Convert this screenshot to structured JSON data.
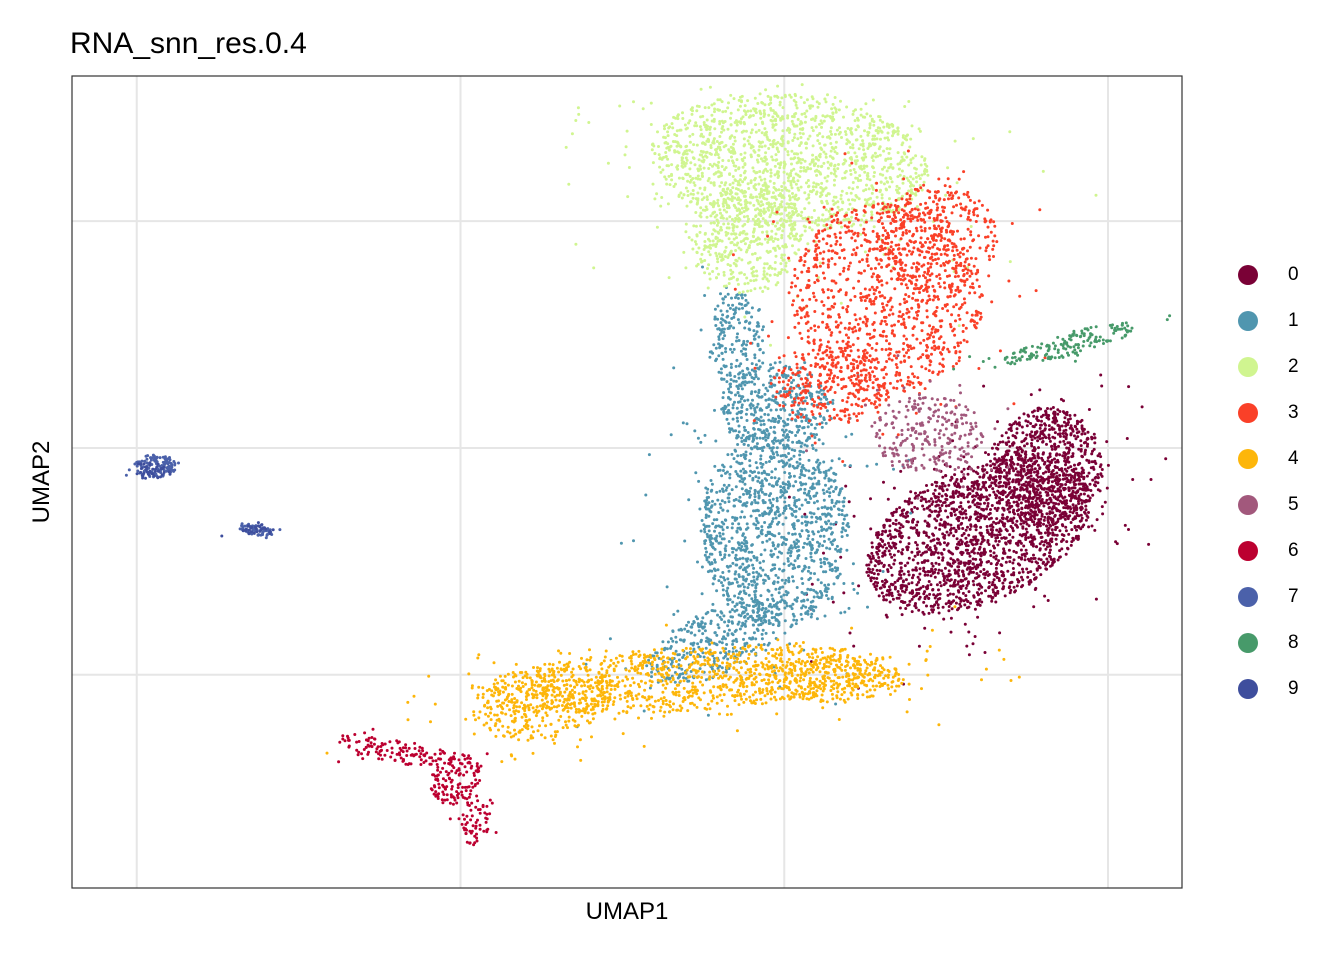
{
  "chart_data": {
    "type": "scatter",
    "title": "RNA_snn_res.0.4",
    "xlabel": "UMAP1",
    "ylabel": "UMAP2",
    "xlim": [
      -12.2,
      11.8
    ],
    "ylim": [
      -9.7,
      8.2
    ],
    "x_ticks": [
      -10.8,
      -3.8,
      3.2,
      10.2
    ],
    "y_ticks": [
      -5,
      0,
      5
    ],
    "tick_labels_shown": false,
    "grid": true,
    "legend_position": "right",
    "point_size": "small",
    "clusters": [
      {
        "name": "0",
        "color": "#7A0136"
      },
      {
        "name": "1",
        "color": "#5096AF"
      },
      {
        "name": "2",
        "color": "#D0F590"
      },
      {
        "name": "3",
        "color": "#FA4028"
      },
      {
        "name": "4",
        "color": "#FDB60A"
      },
      {
        "name": "5",
        "color": "#A2587C"
      },
      {
        "name": "6",
        "color": "#BC0030"
      },
      {
        "name": "7",
        "color": "#4B61AA"
      },
      {
        "name": "8",
        "color": "#479A6A"
      },
      {
        "name": "9",
        "color": "#3E4E9D"
      }
    ],
    "regions": [
      {
        "cluster": "0",
        "n": 2600,
        "ellipses": [
          [
            7.4,
            -1.9,
            2.6,
            1.5,
            25
          ],
          [
            8.9,
            -0.4,
            1.2,
            1.3,
            0
          ]
        ]
      },
      {
        "cluster": "1",
        "n": 2200,
        "ellipses": [
          [
            3.0,
            -1.8,
            1.6,
            2.2,
            0
          ],
          [
            1.7,
            -4.3,
            1.6,
            0.7,
            25
          ],
          [
            3.0,
            0.9,
            1.2,
            1.0,
            0
          ],
          [
            2.2,
            2.4,
            0.6,
            1.1,
            0
          ]
        ]
      },
      {
        "cluster": "2",
        "n": 2000,
        "ellipses": [
          [
            3.3,
            6.3,
            3.0,
            1.5,
            -5
          ],
          [
            2.4,
            4.6,
            1.2,
            1.2,
            0
          ]
        ]
      },
      {
        "cluster": "3",
        "n": 1600,
        "ellipses": [
          [
            5.4,
            3.3,
            2.1,
            2.1,
            0
          ],
          [
            4.2,
            1.4,
            1.3,
            0.9,
            0
          ],
          [
            6.5,
            4.6,
            1.3,
            1.2,
            0
          ]
        ]
      },
      {
        "cluster": "4",
        "n": 1600,
        "ellipses": [
          [
            1.0,
            -5.1,
            4.5,
            0.7,
            4
          ],
          [
            -2.0,
            -5.6,
            1.6,
            0.8,
            12
          ],
          [
            4.0,
            -5.1,
            1.8,
            0.5,
            0
          ]
        ]
      },
      {
        "cluster": "5",
        "n": 260,
        "ellipses": [
          [
            6.3,
            0.3,
            1.2,
            0.9,
            0
          ]
        ]
      },
      {
        "cluster": "6",
        "n": 320,
        "ellipses": [
          [
            -5.1,
            -6.7,
            1.4,
            0.25,
            -10
          ],
          [
            -3.5,
            -8.2,
            0.35,
            0.55,
            0
          ],
          [
            -3.9,
            -7.3,
            0.5,
            0.6,
            -40
          ]
        ]
      },
      {
        "cluster": "7",
        "n": 180,
        "ellipses": [
          [
            -10.4,
            -0.4,
            0.45,
            0.25,
            0
          ],
          [
            -8.2,
            -1.8,
            0.4,
            0.12,
            -10
          ]
        ]
      },
      {
        "cluster": "8",
        "n": 170,
        "ellipses": [
          [
            9.4,
            2.3,
            1.5,
            0.25,
            15
          ]
        ]
      },
      {
        "cluster": "9",
        "n": 70,
        "ellipses": [
          [
            -10.5,
            -0.5,
            0.35,
            0.2,
            0
          ],
          [
            -8.2,
            -1.8,
            0.35,
            0.12,
            0
          ]
        ]
      }
    ]
  }
}
